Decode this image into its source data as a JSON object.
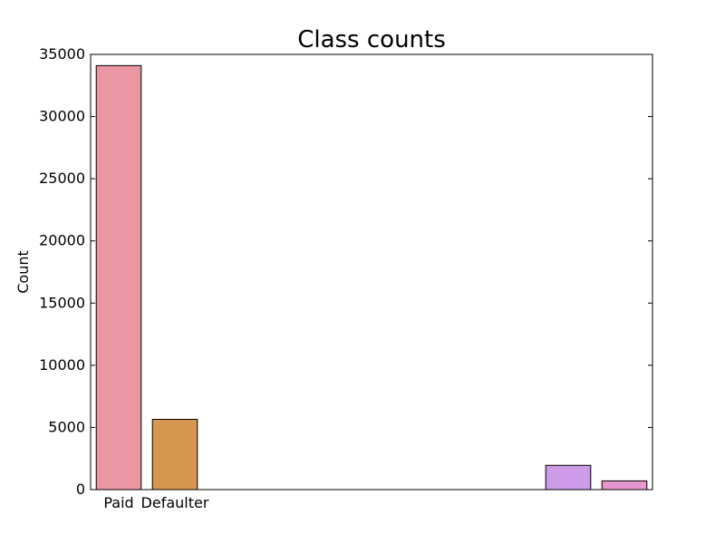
{
  "chart_data": {
    "type": "bar",
    "title": "Class counts",
    "xlabel": "",
    "ylabel": "Count",
    "categories": [
      "Paid",
      "Defaulter",
      "",
      "",
      "",
      "",
      "",
      "",
      "",
      ""
    ],
    "values": [
      34100,
      5650,
      0,
      0,
      0,
      0,
      0,
      0,
      1950,
      700
    ],
    "colors": [
      "#ea96a3",
      "#d8974f",
      "#a9a94e",
      "#7aa849",
      "#4fb089",
      "#52ad9c",
      "#56aec5",
      "#8eaddf",
      "#cd9be7",
      "#e995d0"
    ],
    "ylim": [
      0,
      35000
    ],
    "yticks": [
      0,
      5000,
      10000,
      15000,
      20000,
      25000,
      30000,
      35000
    ],
    "grid": false,
    "legend": "none"
  }
}
